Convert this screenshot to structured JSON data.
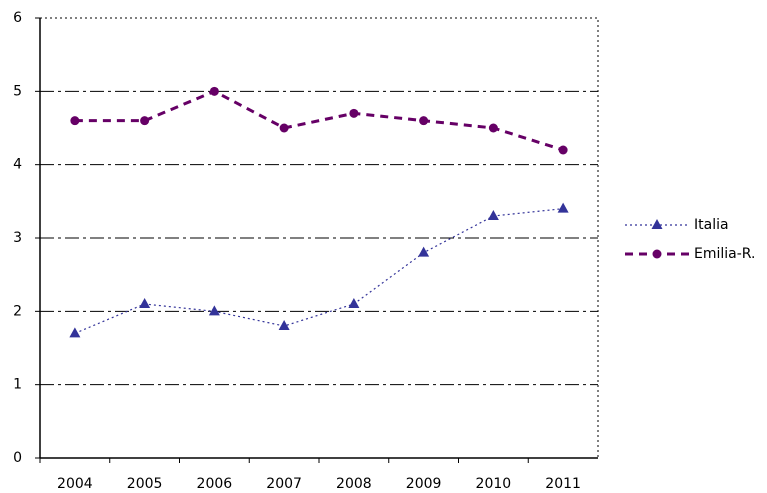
{
  "chart_data": {
    "type": "line",
    "categories": [
      "2004",
      "2005",
      "2006",
      "2007",
      "2008",
      "2009",
      "2010",
      "2011"
    ],
    "series": [
      {
        "name": "Italia",
        "color": "#333399",
        "marker": "triangle",
        "values": [
          1.7,
          2.1,
          2.0,
          1.8,
          2.1,
          2.8,
          3.3,
          3.4
        ]
      },
      {
        "name": "Emilia-R.",
        "color": "#660066",
        "marker": "circle",
        "values": [
          4.6,
          4.6,
          5.0,
          4.5,
          4.7,
          4.6,
          4.5,
          4.2
        ]
      }
    ],
    "ylim": [
      0,
      6
    ],
    "yticks": [
      0,
      1,
      2,
      3,
      4,
      5,
      6
    ],
    "grid": true,
    "legend": "right"
  }
}
